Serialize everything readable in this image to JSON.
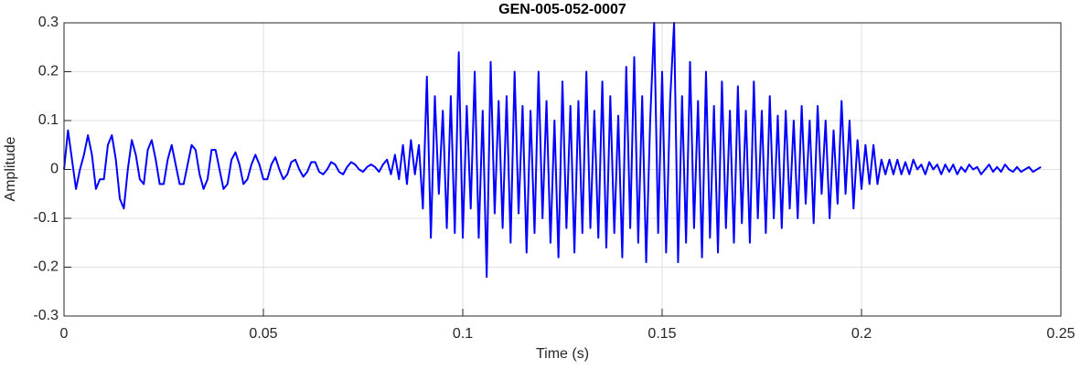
{
  "chart_data": {
    "type": "line",
    "title": "GEN-005-052-0007",
    "xlabel": "Time (s)",
    "ylabel": "Amplitude",
    "xlim": [
      0,
      0.25
    ],
    "xticks": [
      0,
      0.05,
      0.1,
      0.15,
      0.2,
      0.25
    ],
    "ylim": [
      -0.3,
      0.3
    ],
    "yticks": [
      -0.3,
      -0.2,
      -0.1,
      0,
      0.1,
      0.2,
      0.3
    ],
    "grid": true,
    "x": [
      0,
      0.001,
      0.002,
      0.003,
      0.004,
      0.005,
      0.006,
      0.007,
      0.008,
      0.009,
      0.01,
      0.011,
      0.012,
      0.013,
      0.014,
      0.015,
      0.016,
      0.017,
      0.018,
      0.019,
      0.02,
      0.021,
      0.022,
      0.023,
      0.024,
      0.025,
      0.026,
      0.027,
      0.028,
      0.029,
      0.03,
      0.031,
      0.032,
      0.033,
      0.034,
      0.035,
      0.036,
      0.037,
      0.038,
      0.039,
      0.04,
      0.041,
      0.042,
      0.043,
      0.044,
      0.045,
      0.046,
      0.047,
      0.048,
      0.049,
      0.05,
      0.051,
      0.052,
      0.053,
      0.054,
      0.055,
      0.056,
      0.057,
      0.058,
      0.059,
      0.06,
      0.061,
      0.062,
      0.063,
      0.064,
      0.065,
      0.066,
      0.067,
      0.068,
      0.069,
      0.07,
      0.071,
      0.072,
      0.073,
      0.074,
      0.075,
      0.076,
      0.077,
      0.078,
      0.079,
      0.08,
      0.081,
      0.082,
      0.083,
      0.084,
      0.085,
      0.086,
      0.087,
      0.088,
      0.089,
      0.09,
      0.091,
      0.092,
      0.093,
      0.094,
      0.095,
      0.096,
      0.097,
      0.098,
      0.099,
      0.1,
      0.101,
      0.102,
      0.103,
      0.104,
      0.105,
      0.106,
      0.107,
      0.108,
      0.109,
      0.11,
      0.111,
      0.112,
      0.113,
      0.114,
      0.115,
      0.116,
      0.117,
      0.118,
      0.119,
      0.12,
      0.121,
      0.122,
      0.123,
      0.124,
      0.125,
      0.126,
      0.127,
      0.128,
      0.129,
      0.13,
      0.131,
      0.132,
      0.133,
      0.134,
      0.135,
      0.136,
      0.137,
      0.138,
      0.139,
      0.14,
      0.141,
      0.142,
      0.143,
      0.144,
      0.145,
      0.146,
      0.147,
      0.148,
      0.149,
      0.15,
      0.151,
      0.152,
      0.153,
      0.154,
      0.155,
      0.156,
      0.157,
      0.158,
      0.159,
      0.16,
      0.161,
      0.162,
      0.163,
      0.164,
      0.165,
      0.166,
      0.167,
      0.168,
      0.169,
      0.17,
      0.171,
      0.172,
      0.173,
      0.174,
      0.175,
      0.176,
      0.177,
      0.178,
      0.179,
      0.18,
      0.181,
      0.182,
      0.183,
      0.184,
      0.185,
      0.186,
      0.187,
      0.188,
      0.189,
      0.19,
      0.191,
      0.192,
      0.193,
      0.194,
      0.195,
      0.196,
      0.197,
      0.198,
      0.199,
      0.2,
      0.201,
      0.202,
      0.203,
      0.204,
      0.205,
      0.206,
      0.207,
      0.208,
      0.209,
      0.21,
      0.211,
      0.212,
      0.213,
      0.214,
      0.215,
      0.216,
      0.217,
      0.218,
      0.219,
      0.22,
      0.221,
      0.222,
      0.223,
      0.224,
      0.225,
      0.226,
      0.227,
      0.228,
      0.229,
      0.23,
      0.231,
      0.232,
      0.233,
      0.234,
      0.235,
      0.236,
      0.237,
      0.238,
      0.239,
      0.24,
      0.241,
      0.242,
      0.243,
      0.244,
      0.245
    ],
    "series": [
      {
        "color": "#0000ff",
        "values": [
          0.0,
          0.08,
          0.02,
          -0.04,
          0.0,
          0.03,
          0.07,
          0.03,
          -0.04,
          -0.02,
          -0.02,
          0.05,
          0.07,
          0.02,
          -0.06,
          -0.08,
          0.0,
          0.06,
          0.03,
          -0.02,
          -0.03,
          0.04,
          0.06,
          0.02,
          -0.03,
          -0.03,
          0.02,
          0.05,
          0.01,
          -0.03,
          -0.03,
          0.01,
          0.05,
          0.04,
          -0.01,
          -0.04,
          -0.02,
          0.04,
          0.04,
          0.0,
          -0.04,
          -0.03,
          0.02,
          0.035,
          0.01,
          -0.03,
          -0.02,
          0.01,
          0.03,
          0.01,
          -0.02,
          -0.02,
          0.01,
          0.025,
          0.0,
          -0.02,
          -0.01,
          0.015,
          0.02,
          0.0,
          -0.015,
          -0.005,
          0.015,
          0.015,
          -0.005,
          -0.01,
          0.0,
          0.015,
          0.01,
          -0.005,
          -0.01,
          0.005,
          0.015,
          0.01,
          0.0,
          -0.005,
          0.005,
          0.01,
          0.005,
          -0.005,
          0.01,
          0.02,
          -0.01,
          0.03,
          -0.02,
          0.05,
          -0.03,
          0.06,
          -0.01,
          0.05,
          -0.08,
          0.19,
          -0.14,
          0.15,
          -0.05,
          0.12,
          -0.12,
          0.15,
          -0.13,
          0.24,
          -0.14,
          0.13,
          -0.08,
          0.2,
          -0.14,
          0.12,
          -0.22,
          0.22,
          -0.09,
          0.14,
          -0.12,
          0.15,
          -0.15,
          0.2,
          -0.09,
          0.13,
          -0.17,
          0.12,
          -0.13,
          0.2,
          -0.1,
          0.14,
          -0.15,
          0.1,
          -0.18,
          0.18,
          -0.12,
          0.13,
          -0.17,
          0.14,
          -0.13,
          0.2,
          -0.12,
          0.12,
          -0.14,
          0.18,
          -0.16,
          0.15,
          -0.13,
          0.11,
          -0.18,
          0.21,
          -0.12,
          0.23,
          -0.15,
          0.15,
          -0.19,
          0.1,
          0.3,
          -0.13,
          0.2,
          -0.17,
          0.14,
          0.3,
          -0.19,
          0.15,
          -0.15,
          0.22,
          -0.12,
          0.14,
          -0.18,
          0.2,
          -0.14,
          0.13,
          -0.17,
          0.18,
          -0.12,
          0.12,
          -0.15,
          0.17,
          -0.11,
          0.12,
          -0.15,
          0.18,
          -0.1,
          0.12,
          -0.13,
          0.15,
          -0.1,
          0.11,
          -0.12,
          0.12,
          -0.08,
          0.1,
          -0.1,
          0.13,
          -0.07,
          0.1,
          -0.11,
          0.13,
          -0.05,
          0.1,
          -0.1,
          0.08,
          -0.07,
          0.14,
          -0.05,
          0.1,
          -0.08,
          0.06,
          -0.04,
          0.05,
          -0.03,
          0.05,
          -0.03,
          0.02,
          -0.01,
          0.02,
          -0.01,
          0.02,
          -0.01,
          0.015,
          -0.01,
          0.02,
          0.0,
          0.01,
          -0.01,
          0.015,
          0.0,
          0.01,
          -0.01,
          0.01,
          -0.005,
          0.01,
          -0.01,
          0.005,
          -0.005,
          0.01,
          0.0,
          0.005,
          -0.01,
          0.0,
          0.01,
          -0.005,
          0.005,
          -0.005,
          0.01,
          0.0,
          -0.005,
          0.005,
          -0.005,
          0.0,
          0.005,
          -0.005,
          0.0,
          0.005
        ]
      }
    ]
  }
}
